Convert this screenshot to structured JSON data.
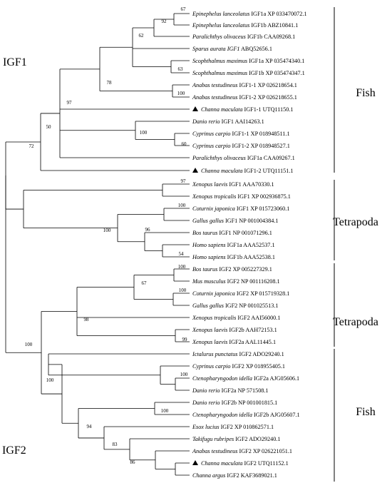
{
  "group_labels": [
    "IGF1",
    "IGF2"
  ],
  "clade_labels": [
    "Fish",
    "Tetrapoda",
    "Tetrapoda",
    "Fish"
  ],
  "taxa": [
    {
      "species": "Epinephelus lanceolatus",
      "gene": "IGF1a XP 033470072.1"
    },
    {
      "species": "Epinephelus lanceolatus",
      "gene": "IGF1b ABZ10841.1"
    },
    {
      "species": "Paralichthys olivaceus",
      "gene": "IGF1b CAA09268.1"
    },
    {
      "species": "Sparus aurata",
      "gene": "IGF1",
      "gene_italic": true,
      "accession": "ABQ52656.1"
    },
    {
      "species": "Scophthalmus maximus",
      "gene": "IGF1a XP 035474340.1"
    },
    {
      "species": "Scophthalmus maximus",
      "gene": "IGF1b XP 035474347.1"
    },
    {
      "species": "Anabas testudineus",
      "gene": "IGF1-1 XP 026218654.1"
    },
    {
      "species": "Anabas testudineus",
      "gene": "IGF1-2 XP 026218655.1"
    },
    {
      "species": "Channa maculata",
      "gene": "IGF1-1 UTQ11150.1",
      "marker": "triangle"
    },
    {
      "species": "Danio rerio",
      "gene": "IGF1 AAI14263.1"
    },
    {
      "species": "Cyprinus carpio",
      "gene": "IGF1-1 XP 018948511.1"
    },
    {
      "species": "Cyprinus carpio",
      "gene": "IGF1-2 XP 018948527.1"
    },
    {
      "species": "Paralichthys olivaceus",
      "gene": "IGF1a CAA09267.1"
    },
    {
      "species": "Channa maculata",
      "gene": "IGF1-2 UTQ11151.1",
      "marker": "triangle"
    },
    {
      "species": "Xenopus laevis",
      "gene": "IGF1 AAA70330.1"
    },
    {
      "species": "Xenopus tropicalis",
      "gene": "IGF1 XP 002936875.1"
    },
    {
      "species": "Coturnix japonica",
      "gene": "IGF1 XP 015723060.1"
    },
    {
      "species": "Gallus gallus",
      "gene": "IGF1 NP 001004384.1"
    },
    {
      "species": "Bos taurus",
      "gene": "IGF1 NP 001071296.1"
    },
    {
      "species": "Homo sapiens",
      "gene": "IGF1a AAA52537.1"
    },
    {
      "species": "Homo sapiens",
      "gene": "IGF1b AAA52538.1"
    },
    {
      "species": "Bos taurus",
      "gene": "IGF2 XP 005227329.1"
    },
    {
      "species": "Mus musculus",
      "gene": "IGF2 NP 001116208.1"
    },
    {
      "species": "Coturnix japonica",
      "gene": "IGF2 XP 015719328.1"
    },
    {
      "species": "Gallus gallus",
      "gene": "IGF2 NP 001025513.1"
    },
    {
      "species": "Xenopus tropicalis",
      "gene": "IGF2 AAI56000.1"
    },
    {
      "species": "Xenopus laevis",
      "gene": "IGF2b AAH72153.1"
    },
    {
      "species": "Xenopus laevis",
      "gene": "IGF2a AAL11445.1"
    },
    {
      "species": "Ictalurus punctatus",
      "gene": "IGF2 ADO29240.1"
    },
    {
      "species": "Cyprinus carpio",
      "gene": "IGF2 XP 018955405.1"
    },
    {
      "species": "Ctenopharyngodon idella",
      "gene": "IGF2a AJG05606.1"
    },
    {
      "species": "Danio rerio",
      "gene": "IGF2a NP 571508.1"
    },
    {
      "species": "Danio rerio",
      "gene": "IGF2b NP 001001815.1"
    },
    {
      "species": "Ctenopharyngodon idella",
      "gene": "IGF2b AJG05607.1"
    },
    {
      "species": "Esox lucius",
      "gene": "IGF2 XP 010862571.1"
    },
    {
      "species": "Takifugu rubripes",
      "gene": "IGF2 ADO29240.1"
    },
    {
      "species": "Anabas testudineus",
      "gene": "IGF2 XP 026221051.1"
    },
    {
      "species": "Channa maculata",
      "gene": "IGF2 UTQ11152.1",
      "marker": "triangle"
    },
    {
      "species": "Channa argus",
      "gene": "IGF2 KAF3689021.1"
    }
  ],
  "bootstrap_values": [
    "67",
    "92",
    "62",
    "63",
    "100",
    "78",
    "97",
    "100",
    "60",
    "50",
    "72",
    "97",
    "100",
    "100",
    "96",
    "54",
    "100",
    "67",
    "100",
    "98",
    "99",
    "100",
    "100",
    "100",
    "100",
    "94",
    "83",
    "86"
  ]
}
